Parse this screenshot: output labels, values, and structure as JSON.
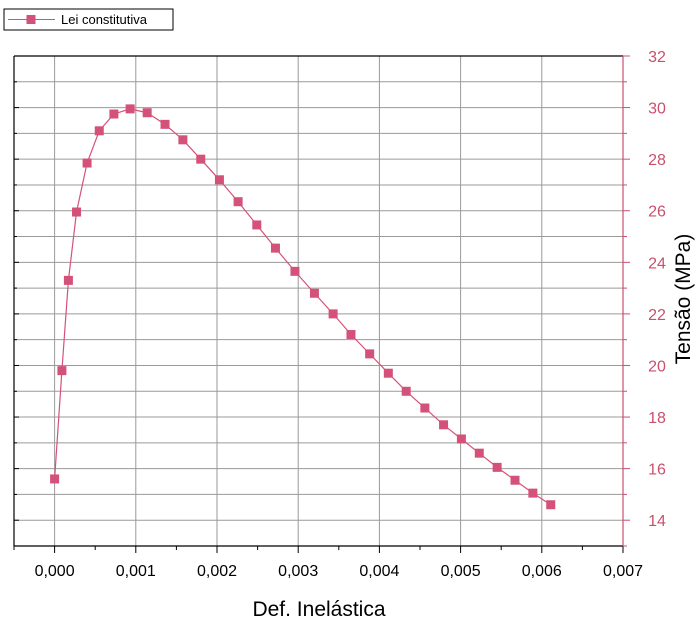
{
  "colors": {
    "series": "#d4527a",
    "right_axis": "#c8506e",
    "grid": "#9a9a9a",
    "axis": "#000000"
  },
  "legend": {
    "label": "Lei constitutiva"
  },
  "chart_data": {
    "type": "line",
    "xlabel": "Def. Inelástica",
    "ylabel": "Tensão (MPa)",
    "xlim": [
      -0.0005,
      0.007
    ],
    "ylim": [
      13,
      32
    ],
    "xticks": [
      "0,000",
      "0,001",
      "0,002",
      "0,003",
      "0,004",
      "0,005",
      "0,006",
      "0,007"
    ],
    "xtick_values": [
      0,
      0.001,
      0.002,
      0.003,
      0.004,
      0.005,
      0.006,
      0.007
    ],
    "yticks": [
      "14",
      "16",
      "18",
      "20",
      "22",
      "24",
      "26",
      "28",
      "30",
      "32"
    ],
    "ytick_values": [
      14,
      16,
      18,
      20,
      22,
      24,
      26,
      28,
      30,
      32
    ],
    "y_axis_side": "right",
    "grid": true,
    "legend_position": "top-left",
    "series": [
      {
        "name": "Lei constitutiva",
        "marker": "square",
        "x": [
          0,
          9e-05,
          0.00017,
          0.00027,
          0.0004,
          0.00055,
          0.00073,
          0.00093,
          0.00114,
          0.00136,
          0.00158,
          0.0018,
          0.00203,
          0.00226,
          0.00249,
          0.00272,
          0.00296,
          0.0032,
          0.00343,
          0.00365,
          0.00388,
          0.00411,
          0.00433,
          0.00456,
          0.00479,
          0.00501,
          0.00523,
          0.00545,
          0.00567,
          0.00589,
          0.00611
        ],
        "y": [
          15.6,
          19.8,
          23.3,
          25.95,
          27.85,
          29.1,
          29.75,
          29.95,
          29.8,
          29.35,
          28.75,
          28.0,
          27.2,
          26.35,
          25.45,
          24.55,
          23.65,
          22.8,
          22.0,
          21.2,
          20.45,
          19.7,
          19.0,
          18.35,
          17.7,
          17.15,
          16.6,
          16.05,
          15.55,
          15.05,
          14.6
        ]
      }
    ]
  }
}
